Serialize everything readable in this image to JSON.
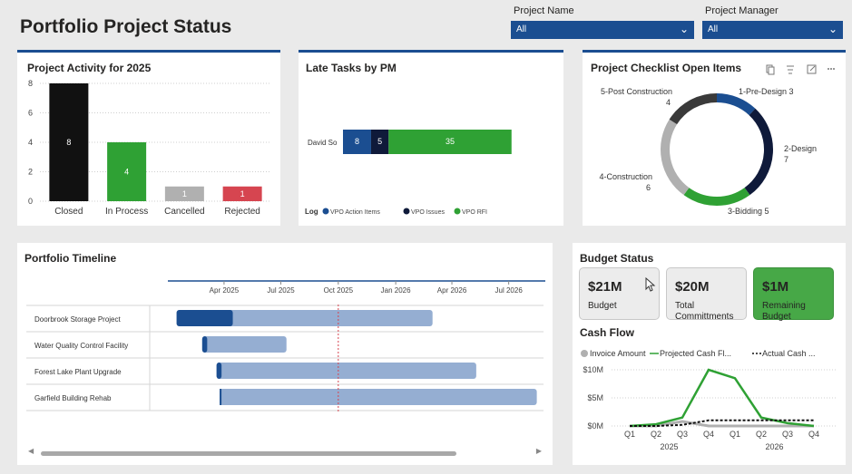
{
  "header": {
    "title": "Portfolio Project Status",
    "slicers": [
      {
        "label": "Project Name",
        "value": "All"
      },
      {
        "label": "Project Manager",
        "value": "All"
      }
    ]
  },
  "activity": {
    "title": "Project Activity for 2025",
    "chart_data": {
      "type": "bar",
      "categories": [
        "Closed",
        "In Process",
        "Cancelled",
        "Rejected"
      ],
      "values": [
        8,
        4,
        1,
        1
      ],
      "colors": [
        "#111111",
        "#2fa134",
        "#b0b0b0",
        "#d64550"
      ],
      "yticks": [
        0,
        2,
        4,
        6,
        8
      ],
      "ylim": [
        0,
        8
      ]
    }
  },
  "late": {
    "title": "Late Tasks by PM",
    "legend_title": "Log",
    "chart_data": {
      "type": "bar",
      "orientation": "horizontal-stacked",
      "categories": [
        "David So"
      ],
      "series": [
        {
          "name": "VPO Action Items",
          "values": [
            8
          ],
          "color": "#1b4e91"
        },
        {
          "name": "VPO Issues",
          "values": [
            5
          ],
          "color": "#0f1a3a"
        },
        {
          "name": "VPO RFI",
          "values": [
            35
          ],
          "color": "#2fa134"
        }
      ]
    }
  },
  "checklist": {
    "title": "Project Checklist Open Items",
    "chart_data": {
      "type": "pie",
      "style": "donut",
      "slices": [
        {
          "label": "1-Pre-Design",
          "value": 3,
          "color": "#1b4e91"
        },
        {
          "label": "2-Design",
          "value": 7,
          "color": "#0f1a3a"
        },
        {
          "label": "3-Bidding",
          "value": 5,
          "color": "#2fa134"
        },
        {
          "label": "4-Construction",
          "value": 6,
          "color": "#b0b0b0"
        },
        {
          "label": "5-Post Construction",
          "value": 4,
          "color": "#3a3a3a"
        }
      ]
    }
  },
  "timeline": {
    "title": "Portfolio Timeline",
    "axis_labels": [
      "Apr 2025",
      "Jul 2025",
      "Oct 2025",
      "Jan 2026",
      "Apr 2026",
      "Jul 2026"
    ],
    "projects": [
      {
        "name": "Doorbrook Storage Project",
        "start": "2025-01-15",
        "progress_end": "2025-04-15",
        "end": "2026-03-01"
      },
      {
        "name": "Water Quality Control Facility",
        "start": "2025-02-25",
        "progress_end": "2025-03-05",
        "end": "2025-07-10"
      },
      {
        "name": "Forest Lake Plant Upgrade",
        "start": "2025-03-20",
        "progress_end": "2025-03-28",
        "end": "2026-05-10"
      },
      {
        "name": "Garfield Building Rehab",
        "start": "2025-03-25",
        "progress_end": "2025-03-25",
        "end": "2026-08-15"
      }
    ],
    "today": "2025-10-01",
    "colors": {
      "progress": "#1b4e91",
      "remaining": "#95aed2",
      "today": "#d64550"
    }
  },
  "budget": {
    "title": "Budget Status",
    "kpis": [
      {
        "value": "$21M",
        "label": "Budget"
      },
      {
        "value": "$20M",
        "label": "Total Committments"
      },
      {
        "value": "$1M",
        "label": "Remaining Budget"
      }
    ]
  },
  "cashflow": {
    "title": "Cash Flow",
    "chart_data": {
      "type": "line",
      "categories": [
        "Q1",
        "Q2",
        "Q3",
        "Q4",
        "Q1",
        "Q2",
        "Q3",
        "Q4"
      ],
      "years": [
        "2025",
        "2026"
      ],
      "yticks": [
        "$0M",
        "$5M",
        "$10M"
      ],
      "ylim": [
        0,
        10
      ],
      "series": [
        {
          "name": "Invoice Amount",
          "values": [
            0,
            0,
            0.8,
            0,
            0,
            0,
            0,
            0
          ],
          "color": "#b0b0b0"
        },
        {
          "name": "Projected Cash Fl...",
          "values": [
            0,
            0.3,
            1.5,
            10,
            8.5,
            1.5,
            0.5,
            0
          ],
          "color": "#2fa134"
        },
        {
          "name": "Actual Cash ...",
          "values": [
            0,
            0,
            0.2,
            1,
            1,
            1,
            1,
            1
          ],
          "color": "#111111"
        }
      ]
    }
  }
}
